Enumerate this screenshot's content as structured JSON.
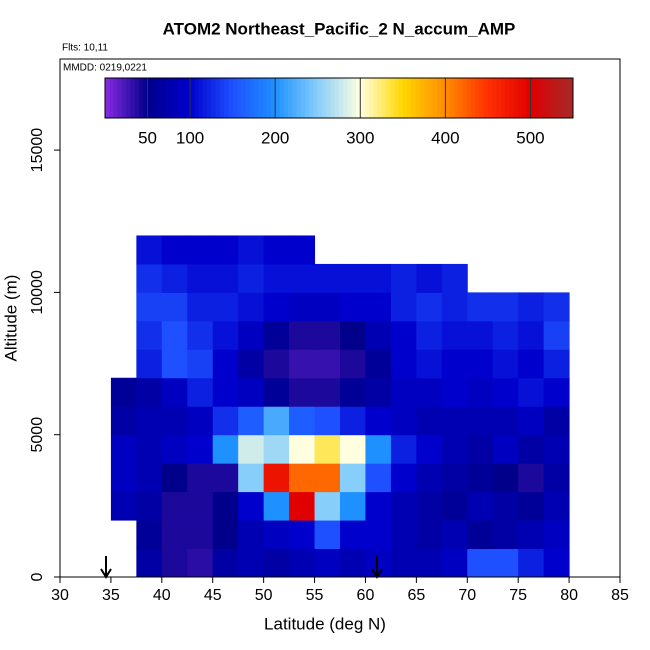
{
  "chart_data": {
    "type": "heatmap",
    "title": "ATOM2 Northeast_Pacific_2 N_accum_AMP",
    "subtitle": "Flts: 10,11",
    "annotation": "MMDD: 0219,0221",
    "x_label": "Latitude (deg N)",
    "y_label": "Altitude (m)",
    "xlim": [
      30,
      85
    ],
    "xticks": [
      30,
      35,
      40,
      45,
      50,
      55,
      60,
      65,
      70,
      75,
      80,
      85
    ],
    "ylim": [
      0,
      18200
    ],
    "yticks": [
      0,
      5000,
      10000,
      15000
    ],
    "clim": [
      0,
      550
    ],
    "cticks": [
      50,
      100,
      200,
      300,
      400,
      500
    ],
    "colorscale": [
      "#8a2be2",
      "#00008b",
      "#0000cd",
      "#1e50ff",
      "#1e90ff",
      "#87cefa",
      "#ffffe0",
      "#ffd700",
      "#ff8c00",
      "#ff3000",
      "#e00000",
      "#a52a2a"
    ],
    "x": [
      36.25,
      38.75,
      41.25,
      43.75,
      46.25,
      48.75,
      51.25,
      53.75,
      56.25,
      58.75,
      61.25,
      63.75,
      66.25,
      68.75,
      71.25,
      73.75,
      76.25,
      78.75
    ],
    "y": [
      500,
      1500,
      2500,
      3500,
      4500,
      5500,
      6500,
      7500,
      8500,
      9500,
      10500,
      11500
    ],
    "values": [
      [
        null,
        70,
        40,
        35,
        70,
        80,
        70,
        80,
        90,
        80,
        90,
        80,
        80,
        90,
        150,
        150,
        120,
        100
      ],
      [
        null,
        60,
        40,
        40,
        50,
        80,
        90,
        100,
        150,
        100,
        100,
        80,
        70,
        80,
        60,
        70,
        80,
        90
      ],
      [
        80,
        70,
        40,
        40,
        50,
        100,
        200,
        500,
        250,
        200,
        100,
        80,
        70,
        60,
        80,
        70,
        60,
        80
      ],
      [
        90,
        80,
        50,
        40,
        40,
        250,
        480,
        420,
        420,
        250,
        150,
        100,
        80,
        70,
        60,
        50,
        40,
        70
      ],
      [
        90,
        80,
        90,
        100,
        200,
        280,
        260,
        300,
        330,
        300,
        200,
        120,
        100,
        80,
        70,
        90,
        70,
        80
      ],
      [
        70,
        80,
        80,
        90,
        130,
        160,
        220,
        160,
        150,
        120,
        100,
        90,
        80,
        80,
        80,
        80,
        90,
        70
      ],
      [
        60,
        70,
        90,
        120,
        100,
        90,
        60,
        40,
        40,
        60,
        70,
        90,
        90,
        100,
        90,
        100,
        110,
        100
      ],
      [
        null,
        120,
        150,
        140,
        100,
        70,
        40,
        30,
        30,
        40,
        60,
        100,
        110,
        100,
        100,
        110,
        100,
        120
      ],
      [
        null,
        130,
        150,
        130,
        110,
        90,
        60,
        40,
        40,
        50,
        80,
        100,
        120,
        110,
        110,
        120,
        110,
        140
      ],
      [
        null,
        140,
        140,
        120,
        120,
        110,
        100,
        90,
        90,
        100,
        100,
        120,
        130,
        120,
        130,
        130,
        120,
        130
      ],
      [
        null,
        130,
        120,
        110,
        110,
        120,
        110,
        110,
        110,
        110,
        110,
        120,
        110,
        120,
        null,
        null,
        null,
        null
      ],
      [
        null,
        110,
        100,
        100,
        100,
        110,
        100,
        100,
        null,
        null,
        null,
        null,
        null,
        null,
        null,
        null,
        null,
        null
      ]
    ]
  }
}
